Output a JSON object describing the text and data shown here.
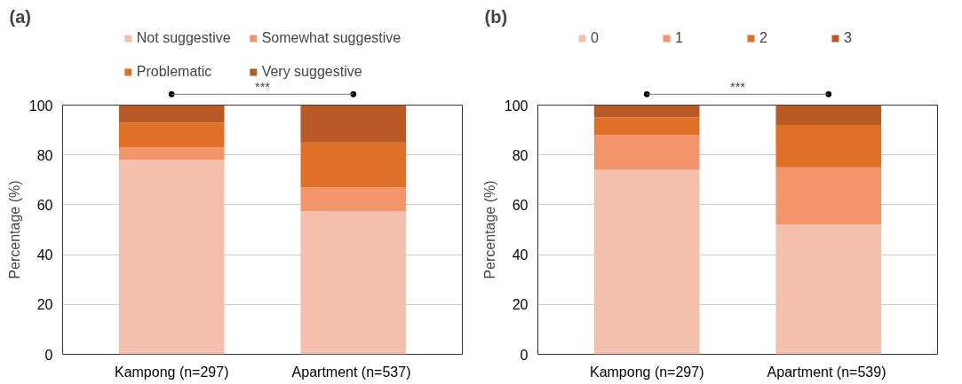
{
  "chart_data": [
    {
      "type": "bar",
      "title": "(a)",
      "ylabel": "Percentage (%)",
      "stacked": true,
      "categories": [
        "Kampong (n=297)",
        "Apartment  (n=537)"
      ],
      "series": [
        {
          "name": "Not suggestive",
          "color": "#f4c0ad",
          "values": [
            78,
            57.5
          ]
        },
        {
          "name": "Somewhat suggestive",
          "color": "#f2956a",
          "values": [
            5,
            9.5
          ]
        },
        {
          "name": "Problematic",
          "color": "#e07028",
          "values": [
            10,
            18
          ]
        },
        {
          "name": "Very suggestive",
          "color": "#b95a26",
          "values": [
            7,
            15
          ]
        }
      ],
      "ylim": [
        0,
        100
      ],
      "yticks": [
        0,
        20,
        40,
        60,
        80,
        100
      ],
      "grid": "y",
      "legend": "top",
      "annotations": [
        "***"
      ]
    },
    {
      "type": "bar",
      "title": "(b)",
      "ylabel": "Percentage (%)",
      "stacked": true,
      "categories": [
        "Kampong (n=297)",
        "Apartment  (n=539)"
      ],
      "series": [
        {
          "name": "0",
          "color": "#f4c0ad",
          "values": [
            74,
            52
          ]
        },
        {
          "name": "1",
          "color": "#f2956a",
          "values": [
            14,
            23
          ]
        },
        {
          "name": "2",
          "color": "#e07028",
          "values": [
            7,
            17
          ]
        },
        {
          "name": "3",
          "color": "#b95a26",
          "values": [
            5,
            8
          ]
        }
      ],
      "ylim": [
        0,
        100
      ],
      "yticks": [
        0,
        20,
        40,
        60,
        80,
        100
      ],
      "grid": "y",
      "legend": "top",
      "annotations": [
        "***"
      ]
    }
  ]
}
